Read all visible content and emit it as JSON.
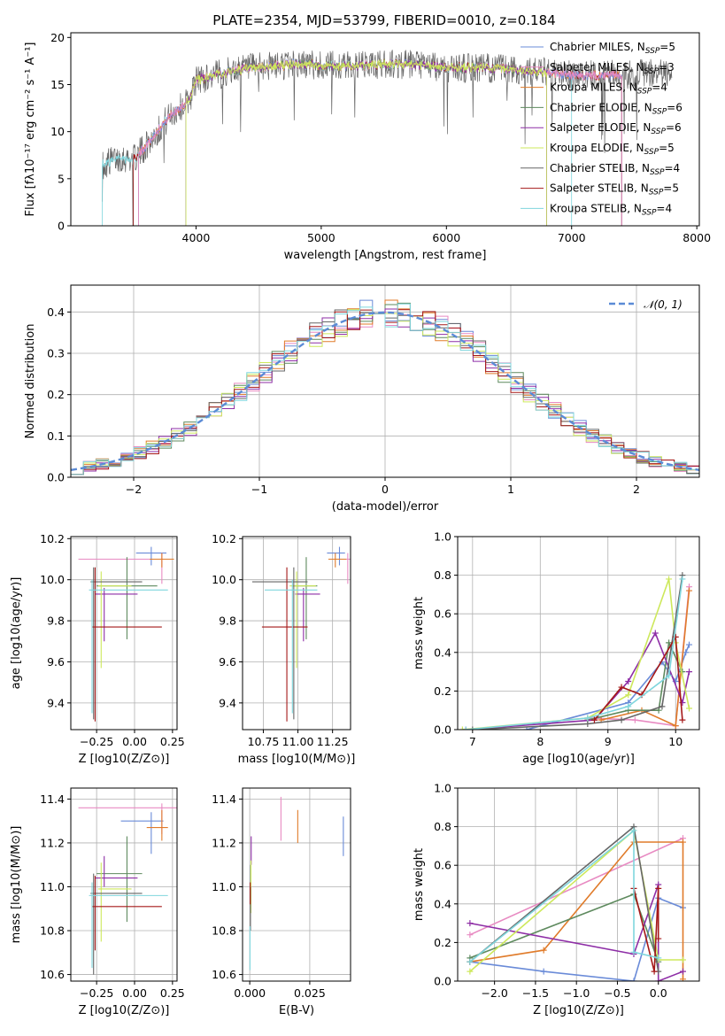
{
  "title": "PLATE=2354, MJD=53799, FIBERID=0010, z=0.184",
  "colors": {
    "Chabrier MILES": "#6a8bd8",
    "Salpeter MILES": "#e88ac2",
    "Kroupa MILES": "#e07b2a",
    "Chabrier ELODIE": "#5e8a5e",
    "Salpeter ELODIE": "#8e2ea6",
    "Kroupa ELODIE": "#cde85b",
    "Chabrier STELIB": "#666666",
    "Salpeter STELIB": "#a51818",
    "Kroupa STELIB": "#7fd6dd"
  },
  "chart_data": [
    {
      "id": "spectrum",
      "type": "line",
      "title": "PLATE=2354, MJD=53799, FIBERID=0010, z=0.184",
      "xlabel": "wavelength [Angstrom, rest frame]",
      "ylabel": "Flux [fλ10⁻¹⁷ erg cm⁻² s⁻¹ A⁻¹]",
      "xlim": [
        3000,
        8020
      ],
      "ylim": [
        0,
        20.5
      ],
      "xticks": [
        4000,
        5000,
        6000,
        7000,
        8000
      ],
      "yticks": [
        0,
        5,
        10,
        15,
        20
      ],
      "legend_position": "top-right",
      "legend": [
        {
          "name": "Chabrier MILES",
          "n": "5"
        },
        {
          "name": "Salpeter MILES",
          "n": "3"
        },
        {
          "name": "Kroupa MILES",
          "n": "4"
        },
        {
          "name": "Chabrier ELODIE",
          "n": "6"
        },
        {
          "name": "Salpeter ELODIE",
          "n": "6"
        },
        {
          "name": "Kroupa ELODIE",
          "n": "5"
        },
        {
          "name": "Chabrier STELIB",
          "n": "4"
        },
        {
          "name": "Salpeter STELIB",
          "n": "5"
        },
        {
          "name": "Kroupa STELIB",
          "n": "4"
        }
      ],
      "legend_suffix": "N",
      "legend_sub": "SSP",
      "continuum": {
        "x": [
          3250,
          3400,
          3500,
          3600,
          3700,
          3800,
          3900,
          3950,
          4000,
          4100,
          4300,
          4500,
          4800,
          5000,
          5300,
          5600,
          6000,
          6300,
          6600,
          7000,
          7300,
          7600,
          7800
        ],
        "y": [
          6.5,
          7.3,
          7.0,
          8.5,
          10.2,
          11.8,
          12.8,
          13.5,
          15.5,
          15.8,
          16.5,
          16.8,
          17.2,
          17.0,
          17.0,
          17.2,
          16.8,
          16.8,
          16.5,
          16.0,
          16.0,
          16.2,
          16.0
        ]
      }
    },
    {
      "id": "residuals",
      "type": "histogram",
      "xlabel": "(data-model)/error",
      "ylabel": "Normed distribution",
      "xlim": [
        -2.5,
        2.5
      ],
      "ylim": [
        0,
        0.465
      ],
      "xticks": [
        -2,
        -1,
        0,
        1,
        2
      ],
      "yticks": [
        0.0,
        0.1,
        0.2,
        0.3,
        0.4
      ],
      "gaussian_label": "N(0,1)"
    },
    {
      "id": "age-vs-Z",
      "type": "errorbar",
      "xlabel": "Z [log10(Z/Z⊙)]",
      "ylabel": "age [log10(age/yr)]",
      "xlim": [
        -0.42,
        0.28
      ],
      "ylim": [
        9.27,
        10.21
      ],
      "xticks": [
        -0.25,
        0.0,
        0.25
      ],
      "yticks": [
        9.4,
        9.6,
        9.8,
        10.0,
        10.2
      ],
      "points": [
        {
          "series": "Chabrier MILES",
          "x": 0.11,
          "y": 10.13,
          "xerr": [
            0.1,
            0.1
          ],
          "yerr": [
            0.06,
            0.03
          ]
        },
        {
          "series": "Salpeter MILES",
          "x": 0.18,
          "y": 10.1,
          "xerr": [
            0.55,
            0.02
          ],
          "yerr": [
            0.12,
            0.03
          ]
        },
        {
          "series": "Kroupa MILES",
          "x": 0.18,
          "y": 10.1,
          "xerr": [
            0.08,
            0.08
          ],
          "yerr": [
            0.04,
            0.03
          ]
        },
        {
          "series": "Chabrier ELODIE",
          "x": -0.05,
          "y": 9.97,
          "xerr": [
            0.2,
            0.2
          ],
          "yerr": [
            0.26,
            0.14
          ]
        },
        {
          "series": "Salpeter ELODIE",
          "x": -0.2,
          "y": 9.93,
          "xerr": [
            0.06,
            0.22
          ],
          "yerr": [
            0.23,
            0.03
          ]
        },
        {
          "series": "Kroupa ELODIE",
          "x": -0.22,
          "y": 9.97,
          "xerr": [
            0.02,
            0.2
          ],
          "yerr": [
            0.4,
            0.07
          ]
        },
        {
          "series": "Chabrier STELIB",
          "x": -0.27,
          "y": 9.99,
          "xerr": [
            0.02,
            0.32
          ],
          "yerr": [
            0.67,
            0.07
          ]
        },
        {
          "series": "Salpeter STELIB",
          "x": -0.26,
          "y": 9.77,
          "xerr": [
            0.02,
            0.44
          ],
          "yerr": [
            0.46,
            0.29
          ]
        },
        {
          "series": "Kroupa STELIB",
          "x": -0.28,
          "y": 9.95,
          "xerr": [
            0.02,
            0.5
          ],
          "yerr": [
            0.6,
            0.05
          ]
        }
      ]
    },
    {
      "id": "age-vs-mass",
      "type": "errorbar",
      "xlabel": "mass [log10(M/M⊙)]",
      "ylabel": "",
      "xlim": [
        10.6,
        11.38
      ],
      "ylim": [
        9.27,
        10.21
      ],
      "xticks": [
        10.75,
        11.0,
        11.25
      ],
      "yticks": [
        9.4,
        9.6,
        9.8,
        10.0,
        10.2
      ],
      "points": [
        {
          "series": "Chabrier MILES",
          "x": 11.3,
          "y": 10.13,
          "xerr": [
            0.09,
            0.04
          ],
          "yerr": [
            0.06,
            0.03
          ]
        },
        {
          "series": "Salpeter MILES",
          "x": 11.36,
          "y": 10.1,
          "xerr": [
            0.12,
            0.02
          ],
          "yerr": [
            0.12,
            0.03
          ]
        },
        {
          "series": "Kroupa MILES",
          "x": 11.27,
          "y": 10.1,
          "xerr": [
            0.05,
            0.08
          ],
          "yerr": [
            0.04,
            0.03
          ]
        },
        {
          "series": "Chabrier ELODIE",
          "x": 11.06,
          "y": 9.97,
          "xerr": [
            0.1,
            0.08
          ],
          "yerr": [
            0.26,
            0.14
          ]
        },
        {
          "series": "Salpeter ELODIE",
          "x": 11.04,
          "y": 9.93,
          "xerr": [
            0.06,
            0.12
          ],
          "yerr": [
            0.23,
            0.03
          ]
        },
        {
          "series": "Kroupa ELODIE",
          "x": 10.99,
          "y": 9.97,
          "xerr": [
            0.05,
            0.14
          ],
          "yerr": [
            0.4,
            0.07
          ]
        },
        {
          "series": "Chabrier STELIB",
          "x": 10.97,
          "y": 9.99,
          "xerr": [
            0.3,
            0.1
          ],
          "yerr": [
            0.67,
            0.07
          ]
        },
        {
          "series": "Salpeter STELIB",
          "x": 10.92,
          "y": 9.77,
          "xerr": [
            0.18,
            0.15
          ],
          "yerr": [
            0.46,
            0.29
          ]
        },
        {
          "series": "Kroupa STELIB",
          "x": 10.96,
          "y": 9.95,
          "xerr": [
            0.2,
            0.18
          ],
          "yerr": [
            0.6,
            0.05
          ]
        }
      ]
    },
    {
      "id": "weight-vs-age",
      "type": "line",
      "xlabel": "age [log10(age/yr)]",
      "ylabel": "mass weight",
      "xlim": [
        6.78,
        10.35
      ],
      "ylim": [
        0,
        1
      ],
      "xticks": [
        7,
        8,
        9,
        10
      ],
      "yticks": [
        0.0,
        0.2,
        0.4,
        0.6,
        0.8,
        1.0
      ],
      "series": [
        {
          "name": "Chabrier MILES",
          "x": [
            7.8,
            9.3,
            9.8,
            10.0,
            10.15,
            10.2
          ],
          "y": [
            0.0,
            0.14,
            0.35,
            0.25,
            0.4,
            0.44
          ]
        },
        {
          "name": "Salpeter MILES",
          "x": [
            8.7,
            9.4,
            10.0,
            10.2
          ],
          "y": [
            0.06,
            0.05,
            0.02,
            0.74
          ]
        },
        {
          "name": "Kroupa MILES",
          "x": [
            8.9,
            9.5,
            10.0,
            10.2
          ],
          "y": [
            0.05,
            0.1,
            0.02,
            0.72
          ]
        },
        {
          "name": "Chabrier ELODIE",
          "x": [
            8.7,
            9.3,
            9.75,
            9.9,
            10.1
          ],
          "y": [
            0.05,
            0.1,
            0.1,
            0.45,
            0.3
          ]
        },
        {
          "name": "Salpeter ELODIE",
          "x": [
            6.9,
            8.8,
            9.3,
            9.7,
            10.1,
            10.2
          ],
          "y": [
            0.0,
            0.05,
            0.25,
            0.5,
            0.14,
            0.3
          ]
        },
        {
          "name": "Kroupa ELODIE",
          "x": [
            6.85,
            8.7,
            9.3,
            9.9,
            10.0,
            10.2
          ],
          "y": [
            0.0,
            0.06,
            0.18,
            0.78,
            0.45,
            0.11
          ]
        },
        {
          "name": "Chabrier STELIB",
          "x": [
            7.0,
            8.7,
            9.2,
            9.8,
            10.1
          ],
          "y": [
            0.0,
            0.03,
            0.05,
            0.12,
            0.8
          ]
        },
        {
          "name": "Salpeter STELIB",
          "x": [
            8.8,
            9.2,
            9.5,
            10.0,
            10.1
          ],
          "y": [
            0.05,
            0.22,
            0.18,
            0.48,
            0.05
          ]
        },
        {
          "name": "Kroupa STELIB",
          "x": [
            6.9,
            8.7,
            9.3,
            9.9,
            10.1
          ],
          "y": [
            0.0,
            0.06,
            0.12,
            0.28,
            0.78
          ]
        }
      ]
    },
    {
      "id": "mass-vs-Z",
      "type": "errorbar",
      "xlabel": "Z [log10(Z/Z⊙)]",
      "ylabel": "mass [log10(M/M⊙)]",
      "xlim": [
        -0.42,
        0.28
      ],
      "ylim": [
        10.57,
        11.45
      ],
      "xticks": [
        -0.25,
        0.0,
        0.25
      ],
      "yticks": [
        10.6,
        10.8,
        11.0,
        11.2,
        11.4
      ],
      "points": [
        {
          "series": "Chabrier MILES",
          "x": 0.11,
          "y": 11.3,
          "xerr": [
            0.2,
            0.08
          ],
          "yerr": [
            0.15,
            0.04
          ]
        },
        {
          "series": "Salpeter MILES",
          "x": 0.18,
          "y": 11.36,
          "xerr": [
            0.55,
            0.1
          ],
          "yerr": [
            0.12,
            0.02
          ]
        },
        {
          "series": "Kroupa MILES",
          "x": 0.18,
          "y": 11.27,
          "xerr": [
            0.1,
            0.04
          ],
          "yerr": [
            0.06,
            0.08
          ]
        },
        {
          "series": "Chabrier ELODIE",
          "x": -0.05,
          "y": 11.06,
          "xerr": [
            0.2,
            0.1
          ],
          "yerr": [
            0.22,
            0.17
          ]
        },
        {
          "series": "Salpeter ELODIE",
          "x": -0.2,
          "y": 11.04,
          "xerr": [
            0.06,
            0.22
          ],
          "yerr": [
            0.04,
            0.1
          ]
        },
        {
          "series": "Kroupa ELODIE",
          "x": -0.22,
          "y": 10.99,
          "xerr": [
            0.02,
            0.2
          ],
          "yerr": [
            0.24,
            0.12
          ]
        },
        {
          "series": "Chabrier STELIB",
          "x": -0.27,
          "y": 10.97,
          "xerr": [
            0.02,
            0.32
          ],
          "yerr": [
            0.37,
            0.09
          ]
        },
        {
          "series": "Salpeter STELIB",
          "x": -0.26,
          "y": 10.91,
          "xerr": [
            0.02,
            0.44
          ],
          "yerr": [
            0.2,
            0.14
          ]
        },
        {
          "series": "Kroupa STELIB",
          "x": -0.28,
          "y": 10.96,
          "xerr": [
            0.02,
            0.5
          ],
          "yerr": [
            0.33,
            0.06
          ]
        }
      ]
    },
    {
      "id": "mass-vs-ebv",
      "type": "errorbar",
      "xlabel": "E(B-V)",
      "ylabel": "",
      "xlim": [
        -0.003,
        0.042
      ],
      "ylim": [
        10.57,
        11.45
      ],
      "xticks": [
        0.0,
        0.025
      ],
      "xtick_labels": [
        "0.000",
        "0.025"
      ],
      "yticks": [
        10.6,
        10.8,
        11.0,
        11.2,
        11.4
      ],
      "points": [
        {
          "series": "Chabrier MILES",
          "x": 0.039,
          "y": 11.23,
          "xerr": [
            0,
            0
          ],
          "yerr": [
            0.09,
            0.09
          ]
        },
        {
          "series": "Salpeter MILES",
          "x": 0.013,
          "y": 11.29,
          "xerr": [
            0,
            0
          ],
          "yerr": [
            0.08,
            0.12
          ]
        },
        {
          "series": "Kroupa MILES",
          "x": 0.02,
          "y": 11.27,
          "xerr": [
            0,
            0
          ],
          "yerr": [
            0.07,
            0.08
          ]
        },
        {
          "series": "Chabrier ELODIE",
          "x": 0.0004,
          "y": 11.02,
          "xerr": [
            0,
            0
          ],
          "yerr": [
            0.08,
            0.08
          ]
        },
        {
          "series": "Salpeter ELODIE",
          "x": 0.0006,
          "y": 11.16,
          "xerr": [
            0,
            0
          ],
          "yerr": [
            0.06,
            0.07
          ]
        },
        {
          "series": "Kroupa ELODIE",
          "x": 0.0005,
          "y": 11.0,
          "xerr": [
            0,
            0
          ],
          "yerr": [
            0.12,
            0.12
          ]
        },
        {
          "series": "Chabrier STELIB",
          "x": 0.0003,
          "y": 10.9,
          "xerr": [
            0,
            0
          ],
          "yerr": [
            0.1,
            0.1
          ]
        },
        {
          "series": "Salpeter STELIB",
          "x": 0.0002,
          "y": 10.97,
          "xerr": [
            0,
            0
          ],
          "yerr": [
            0.05,
            0.05
          ]
        },
        {
          "series": "Kroupa STELIB",
          "x": 0.0001,
          "y": 10.72,
          "xerr": [
            0,
            0
          ],
          "yerr": [
            0.1,
            0.1
          ]
        }
      ]
    },
    {
      "id": "weight-vs-Z",
      "type": "line",
      "xlabel": "Z [log10(Z/Z⊙)]",
      "ylabel": "mass weight",
      "xlim": [
        -2.45,
        0.5
      ],
      "ylim": [
        0,
        1
      ],
      "xticks": [
        -2.0,
        -1.5,
        -1.0,
        -0.5,
        0.0
      ],
      "yticks": [
        0.0,
        0.2,
        0.4,
        0.6,
        0.8,
        1.0
      ],
      "series": [
        {
          "name": "Chabrier MILES",
          "x": [
            -2.3,
            -1.4,
            -0.3,
            0.0,
            0.3
          ],
          "y": [
            0.1,
            0.05,
            0.0,
            0.43,
            0.38
          ]
        },
        {
          "name": "Salpeter MILES",
          "x": [
            -2.3,
            0.3
          ],
          "y": [
            0.24,
            0.74
          ]
        },
        {
          "name": "Kroupa MILES",
          "x": [
            -2.3,
            -1.4,
            -0.3,
            0.3,
            0.3
          ],
          "y": [
            0.1,
            0.16,
            0.72,
            0.72,
            0.01
          ]
        },
        {
          "name": "Chabrier ELODIE",
          "x": [
            -2.3,
            -0.3,
            0.0
          ],
          "y": [
            0.12,
            0.45,
            0.1
          ]
        },
        {
          "name": "Salpeter ELODIE",
          "x": [
            -2.3,
            -0.3,
            0.0,
            0.0,
            0.3
          ],
          "y": [
            0.3,
            0.14,
            0.5,
            0.0,
            0.05
          ]
        },
        {
          "name": "Kroupa ELODIE",
          "x": [
            -2.3,
            -0.3,
            0.0,
            0.3
          ],
          "y": [
            0.05,
            0.78,
            0.11,
            0.11
          ]
        },
        {
          "name": "Chabrier STELIB",
          "x": [
            -2.3,
            -0.3,
            0.0
          ],
          "y": [
            0.1,
            0.8,
            0.05
          ]
        },
        {
          "name": "Salpeter STELIB",
          "x": [
            -0.3,
            -0.05,
            0.0,
            0.0
          ],
          "y": [
            0.48,
            0.05,
            0.48,
            0.22
          ]
        },
        {
          "name": "Kroupa STELIB",
          "x": [
            -2.3,
            -0.3,
            -0.3,
            0.0
          ],
          "y": [
            0.1,
            0.78,
            0.15,
            0.12
          ]
        }
      ]
    }
  ]
}
